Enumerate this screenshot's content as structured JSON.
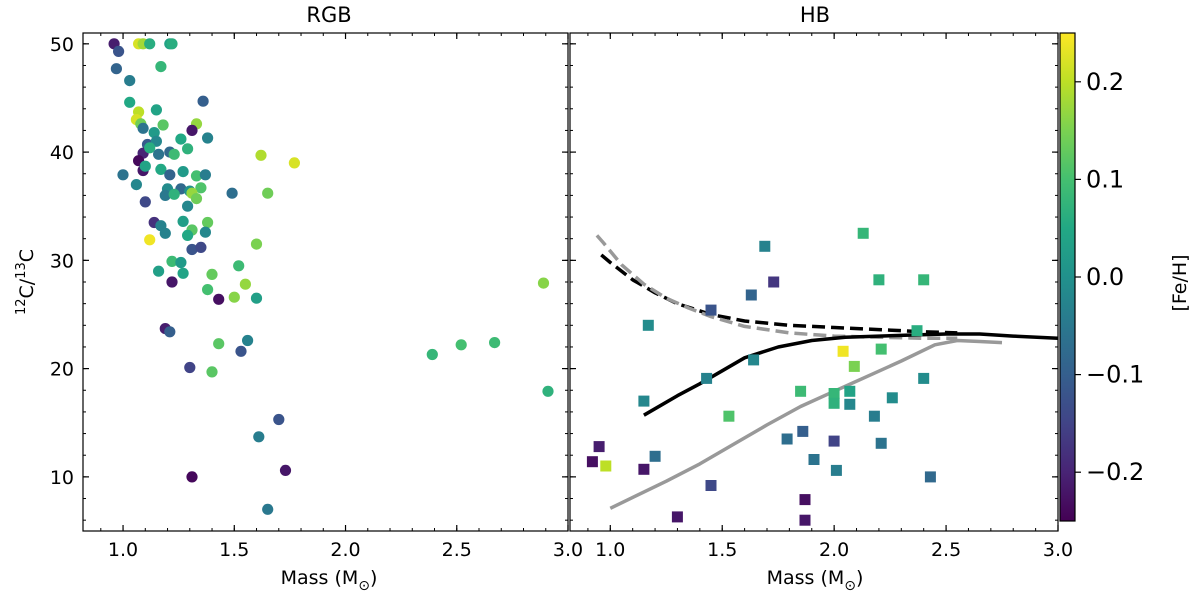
{
  "chart_data": {
    "type": "scatter",
    "ylabel": "12C/13C",
    "ylabel_parts": {
      "iso1": "12",
      "el1": "C/",
      "iso2": "13",
      "el2": "C"
    },
    "ylim": [
      5,
      51
    ],
    "yticks": [
      10,
      20,
      30,
      40,
      50
    ],
    "colorbar": {
      "label": "[Fe/H]",
      "range": [
        -0.25,
        0.25
      ],
      "ticks": [
        0.2,
        0.1,
        0.0,
        -0.1,
        -0.2
      ],
      "tick_labels": [
        "0.2",
        "0.1",
        "0.0",
        "−0.1",
        "−0.2"
      ],
      "colormap": [
        "#440154",
        "#482475",
        "#414487",
        "#355f8d",
        "#2a788e",
        "#21918c",
        "#22a884",
        "#44bf70",
        "#7ad151",
        "#bddf26",
        "#fde725"
      ]
    },
    "panels": [
      {
        "title": "RGB",
        "xlabel": "Mass (M⊙)",
        "xlabel_parts": {
          "text": "Mass (M",
          "sub": "⊙",
          "close": ")"
        },
        "xlim": [
          0.82,
          3.0
        ],
        "xticks": [
          1.0,
          1.5,
          2.0,
          2.5,
          3.0
        ],
        "xtick_labels": [
          "1.0",
          "1.5",
          "2.0",
          "2.5",
          "3.0"
        ],
        "marker": "circle",
        "points": [
          {
            "x": 0.96,
            "y": 50.0,
            "feh": -0.21
          },
          {
            "x": 0.98,
            "y": 49.3,
            "feh": -0.12
          },
          {
            "x": 1.07,
            "y": 50.0,
            "feh": 0.22
          },
          {
            "x": 1.09,
            "y": 50.0,
            "feh": 0.18
          },
          {
            "x": 1.12,
            "y": 50.0,
            "feh": 0.06
          },
          {
            "x": 1.21,
            "y": 50.0,
            "feh": 0.04
          },
          {
            "x": 1.22,
            "y": 50.0,
            "feh": 0.06
          },
          {
            "x": 0.97,
            "y": 47.7,
            "feh": -0.09
          },
          {
            "x": 1.17,
            "y": 47.9,
            "feh": 0.08
          },
          {
            "x": 1.03,
            "y": 46.6,
            "feh": -0.04
          },
          {
            "x": 1.03,
            "y": 44.6,
            "feh": 0.05
          },
          {
            "x": 1.07,
            "y": 43.7,
            "feh": 0.2
          },
          {
            "x": 1.06,
            "y": 43.0,
            "feh": 0.22
          },
          {
            "x": 1.15,
            "y": 43.9,
            "feh": 0.04
          },
          {
            "x": 1.36,
            "y": 44.7,
            "feh": -0.1
          },
          {
            "x": 1.08,
            "y": 42.6,
            "feh": 0.14
          },
          {
            "x": 1.09,
            "y": 42.2,
            "feh": -0.06
          },
          {
            "x": 1.18,
            "y": 42.5,
            "feh": 0.12
          },
          {
            "x": 1.33,
            "y": 42.6,
            "feh": 0.17
          },
          {
            "x": 1.31,
            "y": 42.0,
            "feh": -0.22
          },
          {
            "x": 1.14,
            "y": 41.8,
            "feh": 0.02
          },
          {
            "x": 1.11,
            "y": 40.7,
            "feh": -0.11
          },
          {
            "x": 1.15,
            "y": 41.0,
            "feh": -0.02
          },
          {
            "x": 1.26,
            "y": 41.2,
            "feh": 0.05
          },
          {
            "x": 1.38,
            "y": 41.3,
            "feh": -0.03
          },
          {
            "x": 1.09,
            "y": 39.9,
            "feh": -0.2
          },
          {
            "x": 1.12,
            "y": 40.4,
            "feh": 0.06
          },
          {
            "x": 1.16,
            "y": 39.8,
            "feh": -0.06
          },
          {
            "x": 1.21,
            "y": 40.0,
            "feh": -0.08
          },
          {
            "x": 1.23,
            "y": 39.8,
            "feh": 0.09
          },
          {
            "x": 1.29,
            "y": 40.3,
            "feh": 0.07
          },
          {
            "x": 1.62,
            "y": 39.7,
            "feh": 0.19
          },
          {
            "x": 1.77,
            "y": 39.0,
            "feh": 0.22
          },
          {
            "x": 1.07,
            "y": 39.2,
            "feh": -0.24
          },
          {
            "x": 1.09,
            "y": 38.3,
            "feh": -0.22
          },
          {
            "x": 1.1,
            "y": 38.7,
            "feh": 0.04
          },
          {
            "x": 1.0,
            "y": 37.9,
            "feh": -0.06
          },
          {
            "x": 1.17,
            "y": 38.4,
            "feh": 0.05
          },
          {
            "x": 1.21,
            "y": 37.9,
            "feh": -0.09
          },
          {
            "x": 1.27,
            "y": 38.2,
            "feh": 0.02
          },
          {
            "x": 1.33,
            "y": 37.8,
            "feh": 0.1
          },
          {
            "x": 1.37,
            "y": 37.9,
            "feh": -0.04
          },
          {
            "x": 1.06,
            "y": 37.0,
            "feh": -0.02
          },
          {
            "x": 1.2,
            "y": 36.6,
            "feh": -0.01
          },
          {
            "x": 1.26,
            "y": 36.6,
            "feh": -0.08
          },
          {
            "x": 1.3,
            "y": 36.4,
            "feh": 0.0
          },
          {
            "x": 1.35,
            "y": 36.7,
            "feh": 0.11
          },
          {
            "x": 1.19,
            "y": 36.0,
            "feh": -0.05
          },
          {
            "x": 1.23,
            "y": 36.1,
            "feh": 0.07
          },
          {
            "x": 1.31,
            "y": 36.2,
            "feh": 0.17
          },
          {
            "x": 1.33,
            "y": 35.7,
            "feh": 0.14
          },
          {
            "x": 1.49,
            "y": 36.2,
            "feh": -0.07
          },
          {
            "x": 1.65,
            "y": 36.2,
            "feh": 0.14
          },
          {
            "x": 1.1,
            "y": 35.4,
            "feh": -0.14
          },
          {
            "x": 1.29,
            "y": 35.0,
            "feh": -0.02
          },
          {
            "x": 1.27,
            "y": 33.6,
            "feh": 0.03
          },
          {
            "x": 1.14,
            "y": 33.5,
            "feh": -0.18
          },
          {
            "x": 1.17,
            "y": 33.2,
            "feh": -0.03
          },
          {
            "x": 1.38,
            "y": 33.5,
            "feh": 0.13
          },
          {
            "x": 1.31,
            "y": 32.8,
            "feh": 0.12
          },
          {
            "x": 1.19,
            "y": 32.5,
            "feh": -0.03
          },
          {
            "x": 1.29,
            "y": 32.3,
            "feh": 0.05
          },
          {
            "x": 1.37,
            "y": 32.6,
            "feh": -0.02
          },
          {
            "x": 1.12,
            "y": 31.9,
            "feh": 0.24
          },
          {
            "x": 1.31,
            "y": 31.0,
            "feh": -0.12
          },
          {
            "x": 1.35,
            "y": 31.2,
            "feh": -0.14
          },
          {
            "x": 1.6,
            "y": 31.5,
            "feh": 0.15
          },
          {
            "x": 1.22,
            "y": 29.9,
            "feh": 0.09
          },
          {
            "x": 1.26,
            "y": 29.8,
            "feh": 0.02
          },
          {
            "x": 1.16,
            "y": 29.0,
            "feh": 0.03
          },
          {
            "x": 1.27,
            "y": 28.8,
            "feh": 0.04
          },
          {
            "x": 1.52,
            "y": 29.5,
            "feh": 0.09
          },
          {
            "x": 1.22,
            "y": 28.0,
            "feh": -0.22
          },
          {
            "x": 1.4,
            "y": 28.7,
            "feh": 0.13
          },
          {
            "x": 1.38,
            "y": 27.3,
            "feh": 0.1
          },
          {
            "x": 1.55,
            "y": 27.8,
            "feh": 0.17
          },
          {
            "x": 1.43,
            "y": 26.4,
            "feh": -0.23
          },
          {
            "x": 1.5,
            "y": 26.6,
            "feh": 0.16
          },
          {
            "x": 1.6,
            "y": 26.5,
            "feh": 0.03
          },
          {
            "x": 2.89,
            "y": 27.9,
            "feh": 0.16
          },
          {
            "x": 1.19,
            "y": 23.7,
            "feh": -0.21
          },
          {
            "x": 1.21,
            "y": 23.4,
            "feh": -0.1
          },
          {
            "x": 1.56,
            "y": 22.6,
            "feh": -0.03
          },
          {
            "x": 1.43,
            "y": 22.3,
            "feh": 0.12
          },
          {
            "x": 1.53,
            "y": 21.6,
            "feh": -0.12
          },
          {
            "x": 2.39,
            "y": 21.3,
            "feh": 0.08
          },
          {
            "x": 2.52,
            "y": 22.2,
            "feh": 0.1
          },
          {
            "x": 2.67,
            "y": 22.4,
            "feh": 0.09
          },
          {
            "x": 1.3,
            "y": 20.1,
            "feh": -0.15
          },
          {
            "x": 1.4,
            "y": 19.7,
            "feh": 0.12
          },
          {
            "x": 2.91,
            "y": 17.9,
            "feh": 0.07
          },
          {
            "x": 1.7,
            "y": 15.3,
            "feh": -0.12
          },
          {
            "x": 1.61,
            "y": 13.7,
            "feh": -0.04
          },
          {
            "x": 1.31,
            "y": 10.0,
            "feh": -0.24
          },
          {
            "x": 1.73,
            "y": 10.6,
            "feh": -0.22
          },
          {
            "x": 1.65,
            "y": 7.0,
            "feh": -0.05
          }
        ]
      },
      {
        "title": "HB",
        "xlabel": "Mass (M⊙)",
        "xlabel_parts": {
          "text": "Mass (M",
          "sub": "⊙",
          "close": ")"
        },
        "xlim": [
          0.82,
          3.0
        ],
        "xticks": [
          1.0,
          1.5,
          2.0,
          2.5,
          3.0
        ],
        "xtick_labels": [
          "1.0",
          "1.5",
          "2.0",
          "2.5",
          "3.0"
        ],
        "marker": "square",
        "points": [
          {
            "x": 2.13,
            "y": 32.5,
            "feh": 0.08
          },
          {
            "x": 1.69,
            "y": 31.3,
            "feh": -0.03
          },
          {
            "x": 2.2,
            "y": 28.2,
            "feh": 0.07
          },
          {
            "x": 2.4,
            "y": 28.2,
            "feh": 0.08
          },
          {
            "x": 1.73,
            "y": 28.0,
            "feh": -0.17
          },
          {
            "x": 1.63,
            "y": 26.8,
            "feh": -0.09
          },
          {
            "x": 1.45,
            "y": 25.4,
            "feh": -0.12
          },
          {
            "x": 1.17,
            "y": 24.0,
            "feh": -0.01
          },
          {
            "x": 2.37,
            "y": 23.5,
            "feh": 0.06
          },
          {
            "x": 1.64,
            "y": 20.8,
            "feh": -0.02
          },
          {
            "x": 2.04,
            "y": 21.6,
            "feh": 0.24
          },
          {
            "x": 2.21,
            "y": 21.8,
            "feh": 0.1
          },
          {
            "x": 2.09,
            "y": 20.2,
            "feh": 0.15
          },
          {
            "x": 1.43,
            "y": 19.1,
            "feh": -0.03
          },
          {
            "x": 2.4,
            "y": 19.1,
            "feh": -0.01
          },
          {
            "x": 1.85,
            "y": 17.9,
            "feh": 0.09
          },
          {
            "x": 2.0,
            "y": 17.7,
            "feh": 0.08
          },
          {
            "x": 2.07,
            "y": 17.9,
            "feh": 0.04
          },
          {
            "x": 1.15,
            "y": 17.0,
            "feh": -0.02
          },
          {
            "x": 2.0,
            "y": 16.8,
            "feh": 0.07
          },
          {
            "x": 2.07,
            "y": 16.7,
            "feh": -0.02
          },
          {
            "x": 2.26,
            "y": 17.3,
            "feh": -0.01
          },
          {
            "x": 1.53,
            "y": 15.6,
            "feh": 0.11
          },
          {
            "x": 2.18,
            "y": 15.6,
            "feh": -0.04
          },
          {
            "x": 1.86,
            "y": 14.2,
            "feh": -0.1
          },
          {
            "x": 1.79,
            "y": 13.5,
            "feh": -0.07
          },
          {
            "x": 2.0,
            "y": 13.3,
            "feh": -0.15
          },
          {
            "x": 2.21,
            "y": 13.1,
            "feh": -0.06
          },
          {
            "x": 0.95,
            "y": 12.8,
            "feh": -0.21
          },
          {
            "x": 1.2,
            "y": 11.9,
            "feh": -0.07
          },
          {
            "x": 1.91,
            "y": 11.6,
            "feh": -0.06
          },
          {
            "x": 0.92,
            "y": 11.4,
            "feh": -0.23
          },
          {
            "x": 0.98,
            "y": 11.0,
            "feh": 0.2
          },
          {
            "x": 1.15,
            "y": 10.7,
            "feh": -0.22
          },
          {
            "x": 2.01,
            "y": 10.6,
            "feh": -0.04
          },
          {
            "x": 2.43,
            "y": 10.0,
            "feh": -0.08
          },
          {
            "x": 1.45,
            "y": 9.2,
            "feh": -0.14
          },
          {
            "x": 1.87,
            "y": 7.9,
            "feh": -0.23
          },
          {
            "x": 1.3,
            "y": 6.3,
            "feh": -0.22
          },
          {
            "x": 1.87,
            "y": 6.0,
            "feh": -0.22
          }
        ],
        "lines": [
          {
            "name": "model-dashed-black",
            "color": "#000000",
            "dash": "dashed",
            "x": [
              0.96,
              1.0,
              1.1,
              1.2,
              1.3,
              1.45,
              1.6,
              1.8,
              2.0,
              2.2,
              2.4,
              2.55
            ],
            "y": [
              30.5,
              29.8,
              28.2,
              27.0,
              26.0,
              25.0,
              24.4,
              24.0,
              23.8,
              23.6,
              23.4,
              23.3
            ]
          },
          {
            "name": "model-dashed-grey",
            "color": "#999999",
            "dash": "dashed",
            "x": [
              0.94,
              0.97,
              1.05,
              1.15,
              1.25,
              1.35,
              1.45,
              1.6,
              1.8,
              2.0,
              2.2,
              2.4,
              2.55
            ],
            "y": [
              32.3,
              31.6,
              29.6,
              27.8,
              26.5,
              25.6,
              24.8,
              23.9,
              23.3,
              23.0,
              22.9,
              22.8,
              22.8
            ]
          },
          {
            "name": "model-solid-black",
            "color": "#000000",
            "dash": "solid",
            "x": [
              1.15,
              1.2,
              1.3,
              1.4,
              1.5,
              1.6,
              1.75,
              1.9,
              2.05,
              2.2,
              2.35,
              2.5,
              2.65,
              2.8,
              3.0
            ],
            "y": [
              15.7,
              16.3,
              17.5,
              18.6,
              19.8,
              21.0,
              22.0,
              22.6,
              22.9,
              23.0,
              23.1,
              23.2,
              23.2,
              23.0,
              22.8
            ]
          },
          {
            "name": "model-solid-grey",
            "color": "#999999",
            "dash": "solid",
            "x": [
              1.0,
              1.1,
              1.25,
              1.4,
              1.55,
              1.7,
              1.85,
              2.0,
              2.15,
              2.3,
              2.45,
              2.55,
              2.65,
              2.75
            ],
            "y": [
              7.1,
              8.1,
              9.6,
              11.2,
              13.0,
              14.8,
              16.5,
              17.9,
              19.3,
              20.7,
              22.2,
              22.6,
              22.5,
              22.4
            ]
          }
        ]
      }
    ]
  }
}
